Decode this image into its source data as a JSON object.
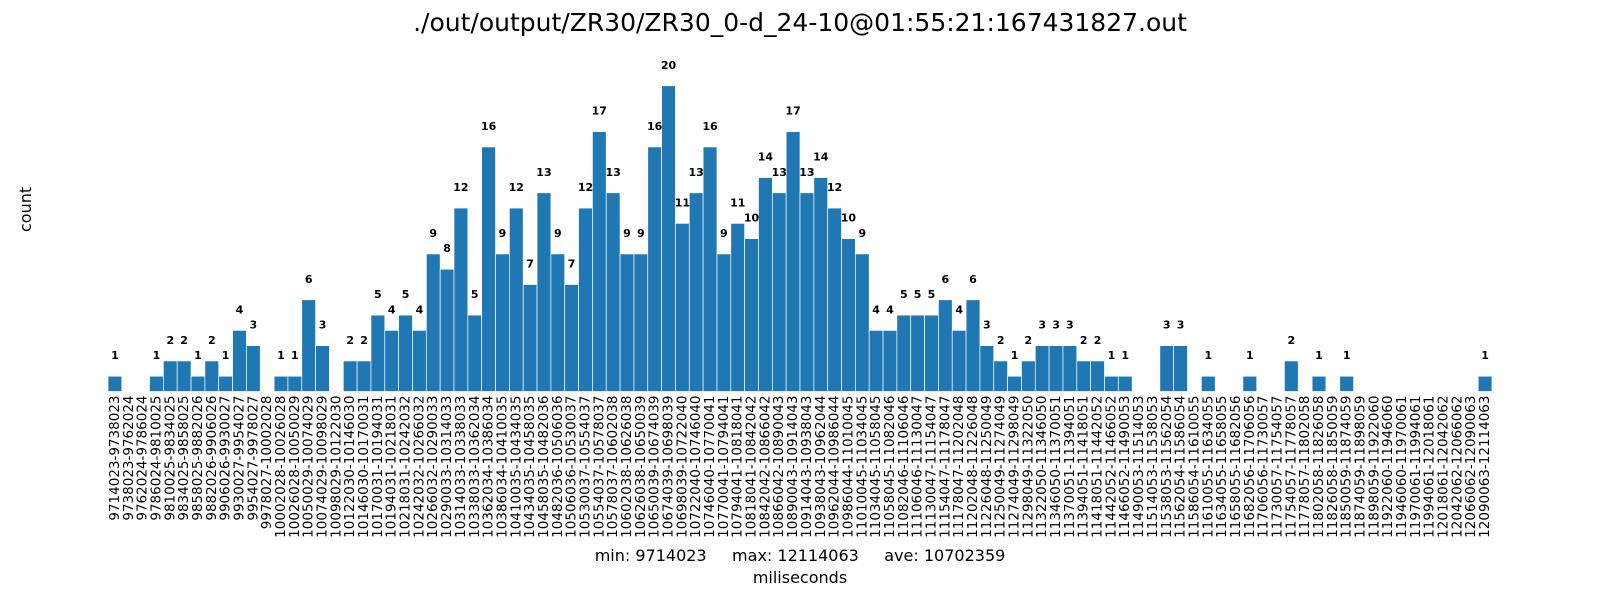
{
  "chart_data": {
    "type": "bar",
    "title": "./out/output/ZR30/ZR30_0-d_24-10@01:55:21:167431827.out",
    "xlabel": "miliseconds",
    "ylabel": "count",
    "stats": {
      "min": "min: 9714023",
      "max": "max: 12114063",
      "ave": "ave: 10702359"
    },
    "ylim": [
      0,
      21
    ],
    "grid": false,
    "bar_color": "#1f77b4",
    "categories": [
      "9714023-9738023",
      "9738023-9762024",
      "9762024-9786024",
      "9786024-9810025",
      "9810025-9834025",
      "9834025-9858025",
      "9858025-9882026",
      "9882026-9906026",
      "9906026-9930027",
      "9930027-9954027",
      "9954027-9978027",
      "9978027-10002028",
      "10002028-10026028",
      "10026028-10050029",
      "10050029-10074029",
      "10074029-10098029",
      "10098029-10122030",
      "10122030-10146030",
      "10146030-10170031",
      "10170031-10194031",
      "10194031-10218031",
      "10218031-10242032",
      "10242032-10266032",
      "10266032-10290033",
      "10290033-10314033",
      "10314033-10338033",
      "10338033-10362034",
      "10362034-10386034",
      "10386034-10410035",
      "10410035-10434035",
      "10434035-10458035",
      "10458035-10482036",
      "10482036-10506036",
      "10506036-10530037",
      "10530037-10554037",
      "10554037-10578037",
      "10578037-10602038",
      "10602038-10626038",
      "10626038-10650039",
      "10650039-10674039",
      "10674039-10698039",
      "10698039-10722040",
      "10722040-10746040",
      "10746040-10770041",
      "10770041-10794041",
      "10794041-10818041",
      "10818041-10842042",
      "10842042-10866042",
      "10866042-10890043",
      "10890043-10914043",
      "10914043-10938043",
      "10938043-10962044",
      "10962044-10986044",
      "10986044-11010045",
      "11010045-11034045",
      "11034045-11058045",
      "11058045-11082046",
      "11082046-11106046",
      "11106046-11130047",
      "11130047-11154047",
      "11154047-11178047",
      "11178047-11202048",
      "11202048-11226048",
      "11226048-11250049",
      "11250049-11274049",
      "11274049-11298049",
      "11298049-11322050",
      "11322050-11346050",
      "11346050-11370051",
      "11370051-11394051",
      "11394051-11418051",
      "11418051-11442052",
      "11442052-11466052",
      "11466052-11490053",
      "11490053-11514053",
      "11514053-11538053",
      "11538053-11562054",
      "11562054-11586054",
      "11586054-11610055",
      "11610055-11634055",
      "11634055-11658055",
      "11658055-11682056",
      "11682056-11706056",
      "11706056-11730057",
      "11730057-11754057",
      "11754057-11778057",
      "11778057-11802058",
      "11802058-11826058",
      "11826058-11850059",
      "11850059-11874059",
      "11874059-11898059",
      "11898059-11922060",
      "11922060-11946060",
      "11946060-11970061",
      "11970061-11994061",
      "11994061-12018061",
      "12018061-12042062",
      "12042062-12066062",
      "12066062-12090063",
      "12090063-12114063"
    ],
    "values": [
      1,
      0,
      0,
      1,
      2,
      2,
      1,
      2,
      1,
      4,
      3,
      0,
      1,
      1,
      6,
      3,
      0,
      2,
      2,
      5,
      4,
      5,
      4,
      9,
      8,
      12,
      5,
      16,
      9,
      12,
      7,
      13,
      9,
      7,
      12,
      17,
      13,
      9,
      9,
      16,
      20,
      11,
      13,
      16,
      9,
      11,
      10,
      14,
      13,
      17,
      13,
      14,
      12,
      10,
      9,
      4,
      4,
      5,
      5,
      5,
      6,
      4,
      6,
      3,
      2,
      1,
      2,
      3,
      3,
      3,
      2,
      2,
      1,
      1,
      0,
      0,
      3,
      3,
      0,
      1,
      0,
      0,
      1,
      0,
      0,
      2,
      0,
      1,
      0,
      1,
      0,
      0,
      0,
      0,
      0,
      0,
      0,
      0,
      0,
      1
    ]
  }
}
